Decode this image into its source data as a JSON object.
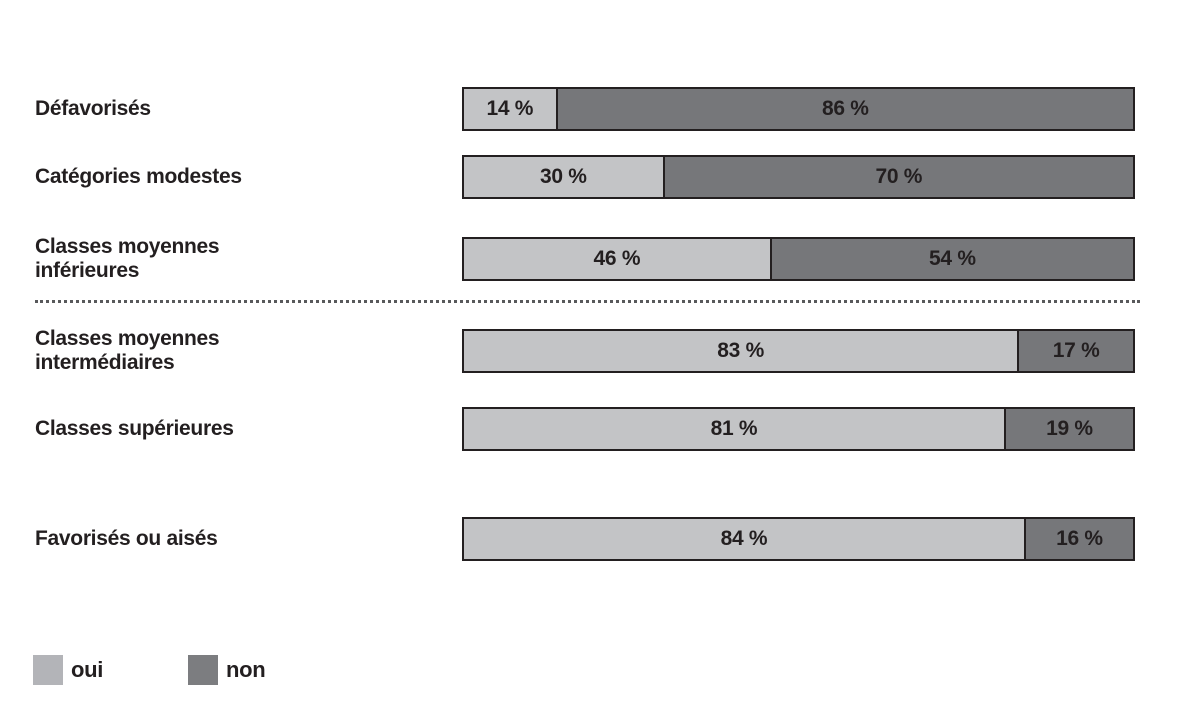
{
  "chart_data": {
    "type": "bar",
    "subtype": "horizontal-stacked-100pct",
    "title": "",
    "xlabel": "",
    "ylabel": "",
    "xlim": [
      0,
      100
    ],
    "grid": false,
    "legend_position": "bottom-left",
    "categories": [
      "Défavorisés",
      "Catégories modestes",
      "Classes moyennes inférieures",
      "Classes moyennes intermédiaires",
      "Classes supérieures",
      "Favorisés ou aisés"
    ],
    "series": [
      {
        "name": "oui",
        "color": "#c3c4c6",
        "values": [
          14,
          30,
          46,
          83,
          81,
          84
        ]
      },
      {
        "name": "non",
        "color": "#76777a",
        "values": [
          86,
          70,
          54,
          17,
          19,
          16
        ]
      }
    ],
    "separator_note": "dotted horizontal divider between 'Classes moyennes inférieures' and 'Classes moyennes intermédiaires'"
  },
  "rows": [
    {
      "label_line1": "Défavorisés",
      "label_line2": "",
      "oui": 14,
      "non": 86,
      "oui_label": "14 %",
      "non_label": "86 %"
    },
    {
      "label_line1": "Catégories modestes",
      "label_line2": "",
      "oui": 30,
      "non": 70,
      "oui_label": "30 %",
      "non_label": "70 %"
    },
    {
      "label_line1": "Classes moyennes",
      "label_line2": "inférieures",
      "oui": 46,
      "non": 54,
      "oui_label": "46 %",
      "non_label": "54 %"
    },
    {
      "label_line1": "Classes moyennes",
      "label_line2": "intermédiaires",
      "oui": 83,
      "non": 17,
      "oui_label": "83 %",
      "non_label": "17 %"
    },
    {
      "label_line1": "Classes supérieures",
      "label_line2": "",
      "oui": 81,
      "non": 19,
      "oui_label": "81 %",
      "non_label": "19 %"
    },
    {
      "label_line1": "Favorisés ou aisés",
      "label_line2": "",
      "oui": 84,
      "non": 16,
      "oui_label": "84 %",
      "non_label": "16 %"
    }
  ],
  "legend": {
    "oui_label": "oui",
    "non_label": "non"
  },
  "colors": {
    "oui_fill": "#c3c4c6",
    "non_fill": "#76777a",
    "bar_border": "#231f20",
    "text": "#231f20",
    "legend_oui_swatch": "#b3b4b8",
    "legend_non_swatch": "#7c7d80",
    "divider_dots": "#58595b",
    "background": "#ffffff"
  }
}
